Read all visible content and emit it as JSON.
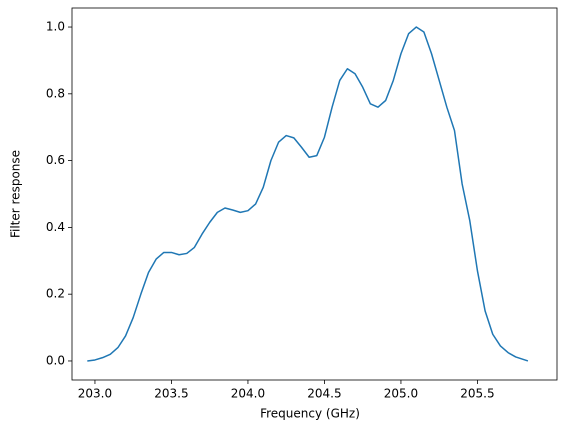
{
  "chart_data": {
    "type": "line",
    "xlabel": "Frequency (GHz)",
    "ylabel": "Filter response",
    "x": [
      202.95,
      203.0,
      203.05,
      203.1,
      203.15,
      203.2,
      203.25,
      203.3,
      203.35,
      203.4,
      203.45,
      203.5,
      203.55,
      203.6,
      203.65,
      203.7,
      203.75,
      203.8,
      203.85,
      203.9,
      203.95,
      204.0,
      204.05,
      204.1,
      204.15,
      204.2,
      204.25,
      204.3,
      204.35,
      204.4,
      204.45,
      204.5,
      204.55,
      204.6,
      204.65,
      204.7,
      204.75,
      204.8,
      204.85,
      204.9,
      204.95,
      205.0,
      205.05,
      205.1,
      205.15,
      205.2,
      205.25,
      205.3,
      205.35,
      205.4,
      205.45,
      205.5,
      205.55,
      205.6,
      205.65,
      205.7,
      205.75,
      205.83
    ],
    "series": [
      {
        "color": "#1f77b4",
        "values": [
          0.0,
          0.003,
          0.01,
          0.02,
          0.04,
          0.075,
          0.13,
          0.2,
          0.265,
          0.305,
          0.325,
          0.325,
          0.318,
          0.322,
          0.34,
          0.38,
          0.415,
          0.445,
          0.458,
          0.452,
          0.445,
          0.45,
          0.47,
          0.52,
          0.6,
          0.655,
          0.675,
          0.668,
          0.64,
          0.61,
          0.615,
          0.67,
          0.76,
          0.84,
          0.875,
          0.86,
          0.82,
          0.77,
          0.76,
          0.78,
          0.84,
          0.92,
          0.98,
          1.0,
          0.985,
          0.92,
          0.84,
          0.76,
          0.69,
          0.53,
          0.42,
          0.27,
          0.15,
          0.08,
          0.045,
          0.025,
          0.012,
          0.0
        ]
      }
    ],
    "xlim": [
      202.85,
      206.02
    ],
    "ylim": [
      -0.057,
      1.057
    ],
    "xticks": [
      {
        "value": 203,
        "label": "203.0"
      },
      203.5,
      {
        "value": 204,
        "label": "204.0"
      },
      204.5,
      {
        "value": 205,
        "label": "205.0"
      },
      205.5
    ],
    "yticks": [
      {
        "value": 0,
        "label": "0.0"
      },
      0.2,
      0.4,
      0.6,
      0.8,
      {
        "value": 1,
        "label": "1.0"
      }
    ]
  }
}
